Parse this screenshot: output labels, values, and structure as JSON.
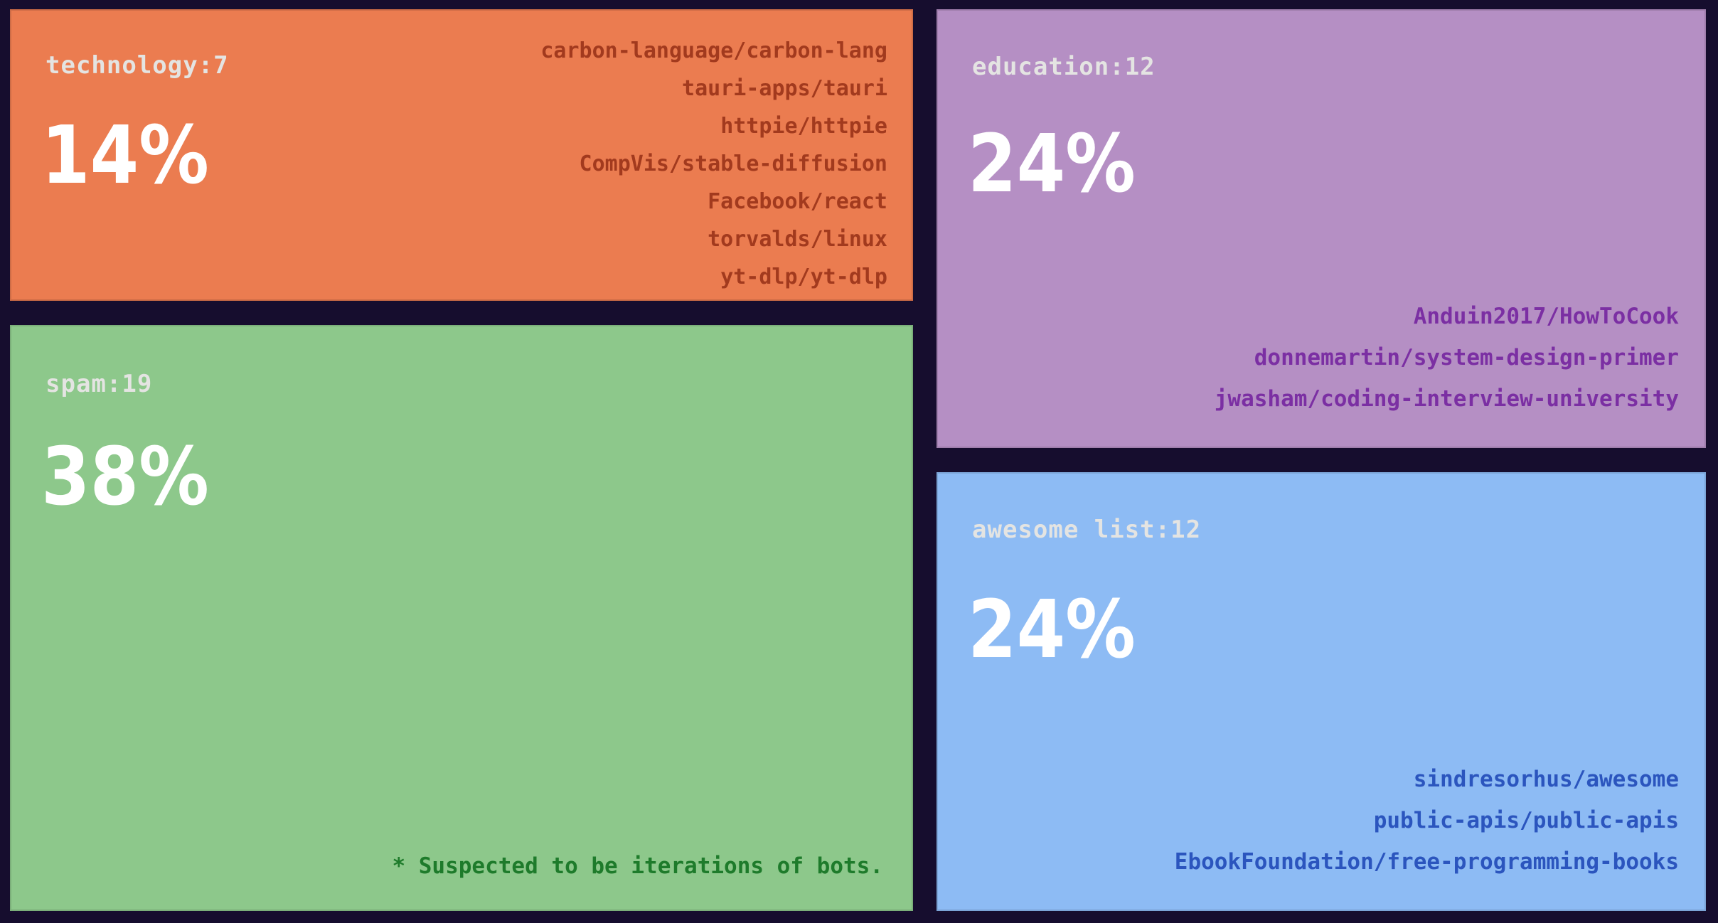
{
  "page": {
    "background": "#160D2E",
    "label_text_color": "#E4E4E2",
    "percent_text_color": "#FFFFFF"
  },
  "chart_data": {
    "type": "treemap",
    "title": "",
    "legend": "none",
    "layout": "left column: technology (top), spam (bottom); right column: education (top), awesome list (bottom)",
    "categories": [
      "technology",
      "spam",
      "education",
      "awesome list"
    ],
    "counts": [
      7,
      19,
      12,
      12
    ],
    "percentages": [
      14,
      38,
      24,
      24
    ],
    "footnote": "* Suspected to be iterations of bots.",
    "footnote_color": "#1E7B2B",
    "items": [
      {
        "category": "technology",
        "count": 7,
        "percent": 14,
        "label": "technology:7",
        "percent_label": "14%",
        "tile_color": "#EB7C50",
        "repo_text_color": "#A23A1E",
        "repos": [
          "carbon-language/carbon-lang",
          "tauri-apps/tauri",
          "httpie/httpie",
          "CompVis/stable-diffusion",
          "Facebook/react",
          "torvalds/linux",
          "yt-dlp/yt-dlp"
        ]
      },
      {
        "category": "spam",
        "count": 19,
        "percent": 38,
        "label": "spam:19",
        "percent_label": "38%",
        "tile_color": "#8DC88B",
        "repo_text_color": "#1E7B2B",
        "repos": []
      },
      {
        "category": "education",
        "count": 12,
        "percent": 24,
        "label": "education:12",
        "percent_label": "24%",
        "tile_color": "#B58FC4",
        "repo_text_color": "#7B2FA3",
        "repos": [
          "Anduin2017/HowToCook",
          "donnemartin/system-design-primer",
          "jwasham/coding-interview-university"
        ]
      },
      {
        "category": "awesome list",
        "count": 12,
        "percent": 24,
        "label": "awesome list:12",
        "percent_label": "24%",
        "tile_color": "#8DBBF4",
        "repo_text_color": "#2B55BE",
        "repos": [
          "sindresorhus/awesome",
          "public-apis/public-apis",
          "EbookFoundation/free-programming-books"
        ]
      }
    ]
  }
}
